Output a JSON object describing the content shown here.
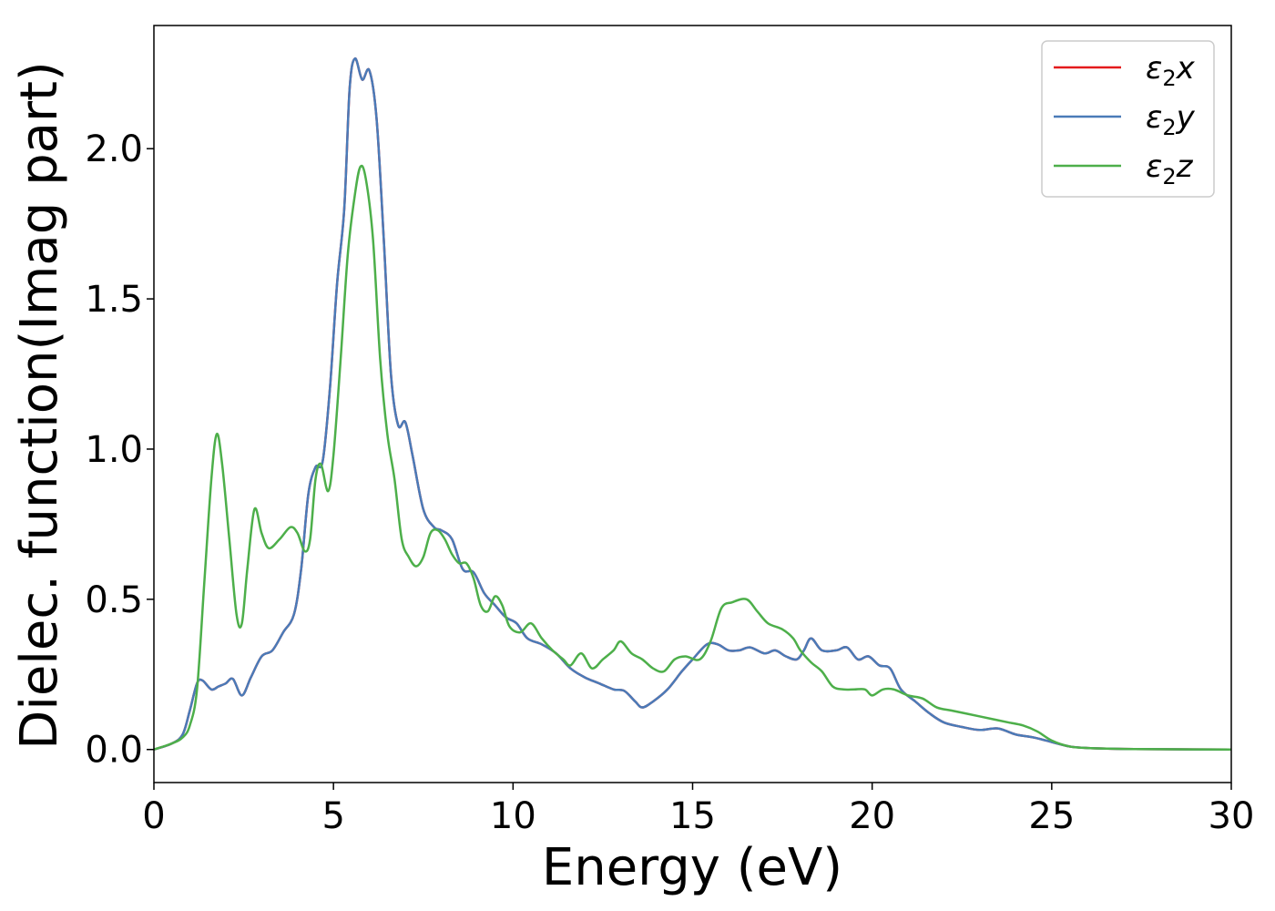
{
  "chart_data": {
    "type": "line",
    "xlabel": "Energy (eV)",
    "ylabel": "Dielec. function(Imag part)",
    "xlim": [
      0,
      30
    ],
    "ylim": [
      -0.11,
      2.41
    ],
    "xticks": [
      0,
      5,
      10,
      15,
      20,
      25,
      30
    ],
    "xtick_labels": [
      "0",
      "5",
      "10",
      "15",
      "20",
      "25",
      "30"
    ],
    "yticks": [
      0.0,
      0.5,
      1.0,
      1.5,
      2.0
    ],
    "ytick_labels": [
      "0.0",
      "0.5",
      "1.0",
      "1.5",
      "2.0"
    ],
    "grid": false,
    "legend_position": "top-right",
    "series": [
      {
        "name": "ε₂x",
        "legend_base": "ε",
        "legend_sub": "2",
        "legend_suffix": "x",
        "color": "#e41a1c",
        "x": [
          0,
          0.5,
          0.8,
          1.0,
          1.2,
          1.35,
          1.6,
          1.8,
          2.0,
          2.2,
          2.45,
          2.7,
          3.0,
          3.3,
          3.6,
          3.9,
          4.1,
          4.3,
          4.5,
          4.7,
          4.9,
          5.1,
          5.3,
          5.45,
          5.6,
          5.8,
          6.0,
          6.2,
          6.4,
          6.6,
          6.8,
          7.0,
          7.2,
          7.5,
          7.8,
          8.0,
          8.3,
          8.6,
          8.9,
          9.2,
          9.5,
          9.8,
          10.1,
          10.4,
          10.8,
          11.2,
          11.6,
          12.0,
          12.4,
          12.8,
          13.1,
          13.4,
          13.6,
          13.9,
          14.3,
          14.7,
          15.0,
          15.4,
          15.7,
          16.0,
          16.3,
          16.6,
          17.0,
          17.3,
          17.6,
          17.9,
          18.1,
          18.3,
          18.6,
          19.0,
          19.3,
          19.6,
          19.9,
          20.2,
          20.5,
          20.8,
          21.2,
          21.6,
          22.0,
          22.5,
          23.0,
          23.5,
          24.0,
          24.5,
          25.0,
          25.5,
          26.0,
          27.0,
          28.0,
          30.0
        ],
        "y": [
          0,
          0.02,
          0.05,
          0.13,
          0.22,
          0.23,
          0.2,
          0.21,
          0.22,
          0.235,
          0.18,
          0.24,
          0.31,
          0.33,
          0.39,
          0.45,
          0.6,
          0.85,
          0.94,
          0.96,
          1.2,
          1.55,
          1.8,
          2.2,
          2.3,
          2.23,
          2.26,
          2.1,
          1.7,
          1.25,
          1.08,
          1.09,
          0.98,
          0.8,
          0.74,
          0.73,
          0.7,
          0.6,
          0.59,
          0.52,
          0.48,
          0.44,
          0.42,
          0.37,
          0.35,
          0.32,
          0.27,
          0.24,
          0.22,
          0.2,
          0.195,
          0.16,
          0.14,
          0.16,
          0.2,
          0.26,
          0.3,
          0.35,
          0.35,
          0.33,
          0.33,
          0.34,
          0.32,
          0.33,
          0.31,
          0.3,
          0.33,
          0.37,
          0.33,
          0.33,
          0.34,
          0.3,
          0.31,
          0.28,
          0.27,
          0.2,
          0.16,
          0.12,
          0.09,
          0.075,
          0.065,
          0.07,
          0.05,
          0.04,
          0.025,
          0.01,
          0.005,
          0.002,
          0.001,
          0
        ]
      },
      {
        "name": "ε₂y",
        "legend_base": "ε",
        "legend_sub": "2",
        "legend_suffix": "y",
        "color": "#4a7bb8",
        "x": [
          0,
          0.5,
          0.8,
          1.0,
          1.2,
          1.35,
          1.6,
          1.8,
          2.0,
          2.2,
          2.45,
          2.7,
          3.0,
          3.3,
          3.6,
          3.9,
          4.1,
          4.3,
          4.5,
          4.7,
          4.9,
          5.1,
          5.3,
          5.45,
          5.6,
          5.8,
          6.0,
          6.2,
          6.4,
          6.6,
          6.8,
          7.0,
          7.2,
          7.5,
          7.8,
          8.0,
          8.3,
          8.6,
          8.9,
          9.2,
          9.5,
          9.8,
          10.1,
          10.4,
          10.8,
          11.2,
          11.6,
          12.0,
          12.4,
          12.8,
          13.1,
          13.4,
          13.6,
          13.9,
          14.3,
          14.7,
          15.0,
          15.4,
          15.7,
          16.0,
          16.3,
          16.6,
          17.0,
          17.3,
          17.6,
          17.9,
          18.1,
          18.3,
          18.6,
          19.0,
          19.3,
          19.6,
          19.9,
          20.2,
          20.5,
          20.8,
          21.2,
          21.6,
          22.0,
          22.5,
          23.0,
          23.5,
          24.0,
          24.5,
          25.0,
          25.5,
          26.0,
          27.0,
          28.0,
          30.0
        ],
        "y": [
          0,
          0.02,
          0.05,
          0.13,
          0.22,
          0.23,
          0.2,
          0.21,
          0.22,
          0.235,
          0.18,
          0.24,
          0.31,
          0.33,
          0.39,
          0.45,
          0.6,
          0.85,
          0.94,
          0.96,
          1.2,
          1.55,
          1.8,
          2.2,
          2.3,
          2.23,
          2.26,
          2.1,
          1.7,
          1.25,
          1.08,
          1.09,
          0.98,
          0.8,
          0.74,
          0.73,
          0.7,
          0.6,
          0.59,
          0.52,
          0.48,
          0.44,
          0.42,
          0.37,
          0.35,
          0.32,
          0.27,
          0.24,
          0.22,
          0.2,
          0.195,
          0.16,
          0.14,
          0.16,
          0.2,
          0.26,
          0.3,
          0.35,
          0.35,
          0.33,
          0.33,
          0.34,
          0.32,
          0.33,
          0.31,
          0.3,
          0.33,
          0.37,
          0.33,
          0.33,
          0.34,
          0.3,
          0.31,
          0.28,
          0.27,
          0.2,
          0.16,
          0.12,
          0.09,
          0.075,
          0.065,
          0.07,
          0.05,
          0.04,
          0.025,
          0.01,
          0.005,
          0.002,
          0.001,
          0
        ]
      },
      {
        "name": "ε₂z",
        "legend_base": "ε",
        "legend_sub": "2",
        "legend_suffix": "z",
        "color": "#4daf4a",
        "x": [
          0,
          0.5,
          0.8,
          1.0,
          1.2,
          1.4,
          1.6,
          1.75,
          1.9,
          2.1,
          2.3,
          2.45,
          2.6,
          2.8,
          3.0,
          3.2,
          3.5,
          3.8,
          4.0,
          4.2,
          4.35,
          4.5,
          4.65,
          4.85,
          5.0,
          5.2,
          5.4,
          5.6,
          5.75,
          5.9,
          6.1,
          6.3,
          6.5,
          6.7,
          6.9,
          7.1,
          7.3,
          7.5,
          7.7,
          7.9,
          8.1,
          8.3,
          8.5,
          8.7,
          8.9,
          9.1,
          9.3,
          9.5,
          9.7,
          9.9,
          10.2,
          10.5,
          10.8,
          11.1,
          11.4,
          11.6,
          11.9,
          12.2,
          12.5,
          12.8,
          13.0,
          13.3,
          13.6,
          13.9,
          14.2,
          14.5,
          14.8,
          15.2,
          15.5,
          15.8,
          16.1,
          16.5,
          16.8,
          17.1,
          17.5,
          17.8,
          18.0,
          18.3,
          18.6,
          18.9,
          19.2,
          19.5,
          19.8,
          20.0,
          20.3,
          20.6,
          21.0,
          21.4,
          21.8,
          22.2,
          22.6,
          23.0,
          23.4,
          23.8,
          24.2,
          24.6,
          25.0,
          25.5,
          26.0,
          27.0,
          28.0,
          30.0
        ],
        "y": [
          0,
          0.02,
          0.04,
          0.08,
          0.2,
          0.55,
          0.9,
          1.05,
          0.95,
          0.7,
          0.45,
          0.42,
          0.6,
          0.8,
          0.72,
          0.67,
          0.7,
          0.74,
          0.72,
          0.66,
          0.7,
          0.9,
          0.95,
          0.86,
          0.98,
          1.3,
          1.65,
          1.85,
          1.94,
          1.9,
          1.7,
          1.3,
          1.05,
          0.9,
          0.7,
          0.64,
          0.61,
          0.64,
          0.72,
          0.73,
          0.7,
          0.65,
          0.62,
          0.62,
          0.57,
          0.48,
          0.46,
          0.51,
          0.48,
          0.41,
          0.39,
          0.42,
          0.37,
          0.33,
          0.3,
          0.28,
          0.32,
          0.27,
          0.3,
          0.33,
          0.36,
          0.32,
          0.3,
          0.27,
          0.26,
          0.3,
          0.31,
          0.3,
          0.36,
          0.47,
          0.49,
          0.5,
          0.46,
          0.42,
          0.4,
          0.37,
          0.33,
          0.29,
          0.26,
          0.21,
          0.2,
          0.2,
          0.2,
          0.18,
          0.2,
          0.2,
          0.18,
          0.17,
          0.14,
          0.13,
          0.12,
          0.11,
          0.1,
          0.09,
          0.08,
          0.06,
          0.03,
          0.01,
          0.005,
          0.002,
          0.001,
          0
        ]
      }
    ]
  }
}
